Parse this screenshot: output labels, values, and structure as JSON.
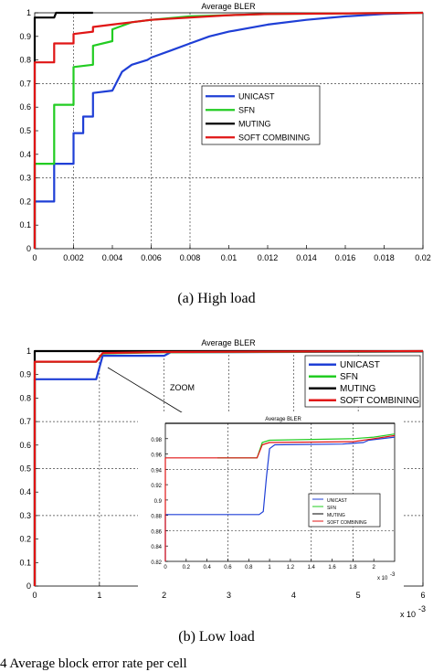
{
  "figure_caption": "4    Average block error rate per cell",
  "chart_data": [
    {
      "type": "line",
      "title": "Average BLER",
      "caption": "(a) High load",
      "xlabel": "",
      "ylabel": "",
      "xlim": [
        0,
        0.02
      ],
      "ylim": [
        0,
        1
      ],
      "x_ticks": [
        "0",
        "0.002",
        "0.004",
        "0.006",
        "0.008",
        "0.01",
        "0.012",
        "0.014",
        "0.016",
        "0.018",
        "0.02"
      ],
      "y_ticks": [
        "0",
        "0.1",
        "0.2",
        "0.3",
        "0.4",
        "0.5",
        "0.6",
        "0.7",
        "0.8",
        "0.9",
        "1"
      ],
      "grid": "dotted at x=0.002, 0.006, 0.008 and y=0.3, 0.7",
      "legend_position": "center-right",
      "series": [
        {
          "name": "UNICAST",
          "color": "#1f3fd6",
          "points": [
            [
              0,
              0
            ],
            [
              0,
              0.2
            ],
            [
              0.001,
              0.2
            ],
            [
              0.001,
              0.36
            ],
            [
              0.002,
              0.36
            ],
            [
              0.002,
              0.49
            ],
            [
              0.0025,
              0.49
            ],
            [
              0.0025,
              0.56
            ],
            [
              0.003,
              0.56
            ],
            [
              0.003,
              0.66
            ],
            [
              0.004,
              0.67
            ],
            [
              0.0045,
              0.75
            ],
            [
              0.005,
              0.78
            ],
            [
              0.0058,
              0.8
            ],
            [
              0.006,
              0.81
            ],
            [
              0.007,
              0.84
            ],
            [
              0.008,
              0.87
            ],
            [
              0.009,
              0.9
            ],
            [
              0.01,
              0.92
            ],
            [
              0.012,
              0.95
            ],
            [
              0.014,
              0.97
            ],
            [
              0.016,
              0.985
            ],
            [
              0.018,
              0.995
            ],
            [
              0.02,
              1
            ]
          ]
        },
        {
          "name": "SFN",
          "color": "#22cc22",
          "points": [
            [
              0,
              0
            ],
            [
              0,
              0.36
            ],
            [
              0.001,
              0.36
            ],
            [
              0.001,
              0.61
            ],
            [
              0.002,
              0.61
            ],
            [
              0.002,
              0.77
            ],
            [
              0.003,
              0.78
            ],
            [
              0.003,
              0.86
            ],
            [
              0.004,
              0.88
            ],
            [
              0.004,
              0.93
            ],
            [
              0.005,
              0.96
            ],
            [
              0.006,
              0.97
            ],
            [
              0.008,
              0.985
            ],
            [
              0.01,
              0.99
            ],
            [
              0.012,
              0.995
            ],
            [
              0.02,
              1
            ]
          ]
        },
        {
          "name": "MUTING",
          "color": "#000000",
          "points": [
            [
              0,
              0
            ],
            [
              0,
              0.98
            ],
            [
              0.001,
              0.98
            ],
            [
              0.0011,
              1
            ],
            [
              0.003,
              1
            ]
          ]
        },
        {
          "name": "SOFT COMBINING",
          "color": "#e01515",
          "points": [
            [
              0,
              0
            ],
            [
              0,
              0.79
            ],
            [
              0.001,
              0.79
            ],
            [
              0.001,
              0.87
            ],
            [
              0.002,
              0.87
            ],
            [
              0.002,
              0.91
            ],
            [
              0.003,
              0.92
            ],
            [
              0.003,
              0.94
            ],
            [
              0.004,
              0.95
            ],
            [
              0.005,
              0.96
            ],
            [
              0.006,
              0.97
            ],
            [
              0.008,
              0.98
            ],
            [
              0.01,
              0.99
            ],
            [
              0.012,
              0.995
            ],
            [
              0.02,
              1
            ]
          ]
        }
      ]
    },
    {
      "type": "line",
      "title": "Average BLER",
      "caption": "(b) Low load",
      "xlabel": "",
      "ylabel": "",
      "xlim": [
        0,
        6
      ],
      "ylim": [
        0,
        1
      ],
      "x_ticks": [
        "0",
        "1",
        "2",
        "3",
        "4",
        "5",
        "6"
      ],
      "x_multiplier": "x 10",
      "x_multiplier_exp": "-3",
      "y_ticks": [
        "0",
        "0.1",
        "0.2",
        "0.3",
        "0.4",
        "0.5",
        "0.6",
        "0.7",
        "0.8",
        "0.9",
        "1"
      ],
      "grid": "dotted at x=1, 2, 3, 4, 5 and y=0.3, 0.5, 0.7",
      "legend_position": "top-right",
      "annotation": "ZOOM",
      "series": [
        {
          "name": "UNICAST",
          "color": "#1f3fd6",
          "points": [
            [
              0,
              0
            ],
            [
              0,
              0.88
            ],
            [
              0.95,
              0.88
            ],
            [
              1.05,
              0.98
            ],
            [
              2,
              0.98
            ],
            [
              2.1,
              0.995
            ],
            [
              6,
              0.998
            ]
          ]
        },
        {
          "name": "SFN",
          "color": "#22cc22",
          "points": [
            [
              0,
              0
            ],
            [
              0,
              0.955
            ],
            [
              0.95,
              0.955
            ],
            [
              1.05,
              0.99
            ],
            [
              2,
              0.995
            ],
            [
              6,
              0.999
            ]
          ]
        },
        {
          "name": "MUTING",
          "color": "#000000",
          "points": [
            [
              0,
              0
            ],
            [
              0,
              1
            ],
            [
              6,
              1
            ]
          ]
        },
        {
          "name": "SOFT COMBINING",
          "color": "#e01515",
          "points": [
            [
              0,
              0
            ],
            [
              0,
              0.955
            ],
            [
              0.95,
              0.955
            ],
            [
              1.05,
              0.992
            ],
            [
              2,
              0.996
            ],
            [
              6,
              1
            ]
          ]
        }
      ],
      "inset": {
        "title": "Average BLER",
        "xlim": [
          0,
          2.2
        ],
        "ylim": [
          0.82,
          1
        ],
        "x_ticks": [
          "0",
          "0.2",
          "0.4",
          "0.6",
          "0.8",
          "1",
          "1.2",
          "1.4",
          "1.6",
          "1.8",
          "2"
        ],
        "x_multiplier": "x 10",
        "x_multiplier_exp": "-3",
        "y_ticks": [
          "0.82",
          "0.84",
          "0.86",
          "0.88",
          "0.9",
          "0.92",
          "0.94",
          "0.96",
          "0.98"
        ],
        "series": [
          {
            "name": "UNICAST",
            "color": "#1f3fd6",
            "points": [
              [
                0,
                0.82
              ],
              [
                0,
                0.881
              ],
              [
                0.9,
                0.881
              ],
              [
                0.94,
                0.885
              ],
              [
                0.97,
                0.93
              ],
              [
                1.0,
                0.967
              ],
              [
                1.05,
                0.972
              ],
              [
                1.7,
                0.973
              ],
              [
                1.9,
                0.975
              ],
              [
                1.95,
                0.978
              ],
              [
                2.2,
                0.982
              ]
            ]
          },
          {
            "name": "SFN",
            "color": "#22cc22",
            "points": [
              [
                0.5,
                0.955
              ],
              [
                0.88,
                0.955
              ],
              [
                0.93,
                0.975
              ],
              [
                1.0,
                0.978
              ],
              [
                1.8,
                0.98
              ],
              [
                2.0,
                0.982
              ],
              [
                2.2,
                0.986
              ]
            ]
          },
          {
            "name": "MUTING",
            "color": "#000000",
            "points": [
              [
                0,
                1
              ],
              [
                2.2,
                1
              ]
            ]
          },
          {
            "name": "SOFT COMBINING",
            "color": "#e01515",
            "points": [
              [
                0,
                0.82
              ],
              [
                0,
                0.955
              ],
              [
                0.88,
                0.955
              ],
              [
                0.93,
                0.972
              ],
              [
                1.0,
                0.975
              ],
              [
                1.8,
                0.976
              ],
              [
                2.0,
                0.98
              ],
              [
                2.2,
                0.984
              ]
            ]
          }
        ]
      }
    }
  ]
}
